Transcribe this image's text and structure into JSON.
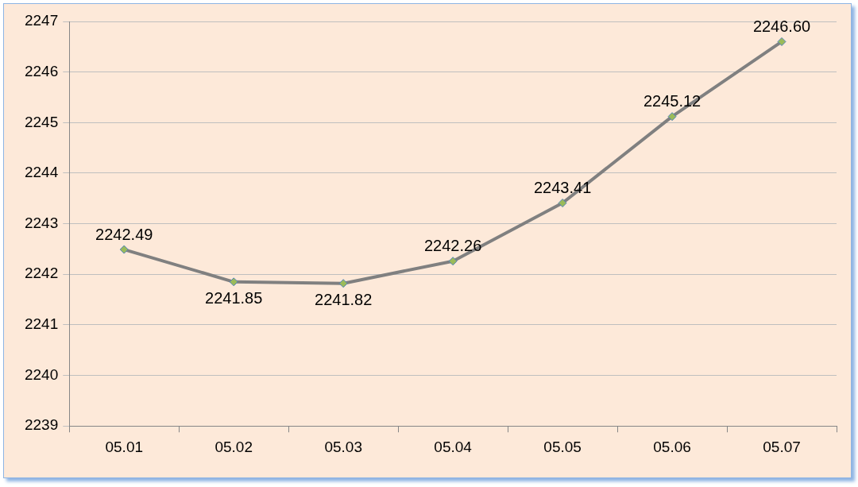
{
  "chart_data": {
    "type": "line",
    "categories": [
      "05.01",
      "05.02",
      "05.03",
      "05.04",
      "05.05",
      "05.06",
      "05.07"
    ],
    "series": [
      {
        "color": "#808080",
        "values": [
          2242.49,
          2241.85,
          2241.82,
          2242.26,
          2243.41,
          2245.12,
          2246.6
        ],
        "value_labels": [
          "2242.49",
          "2241.85",
          "2241.82",
          "2242.26",
          "2243.41",
          "2245.12",
          "2246.60"
        ]
      }
    ],
    "ylim": [
      2239,
      2247
    ],
    "yticks": [
      2239,
      2240,
      2241,
      2242,
      2243,
      2244,
      2245,
      2246,
      2247
    ],
    "grid": "y",
    "legend": false,
    "marker": "diamond",
    "line_style": "solid"
  }
}
